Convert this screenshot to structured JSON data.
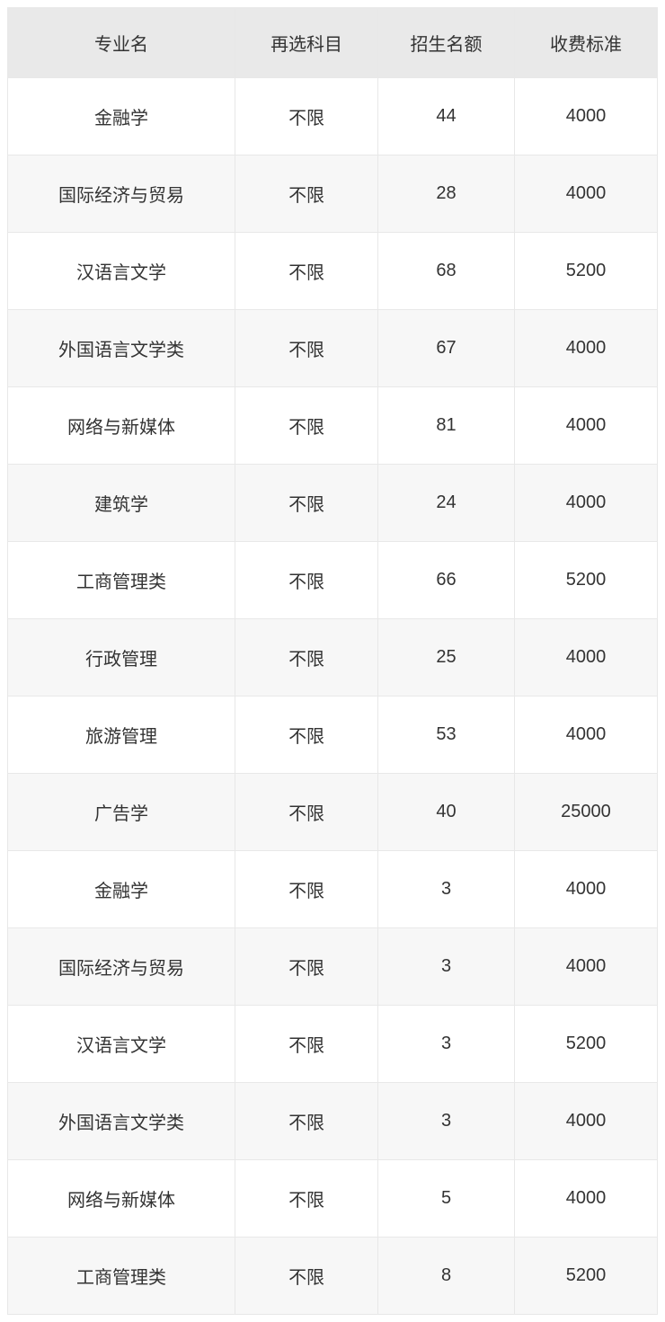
{
  "table": {
    "columns": [
      {
        "label": "专业名",
        "class": "col-major"
      },
      {
        "label": "再选科目",
        "class": "col-subject"
      },
      {
        "label": "招生名额",
        "class": "col-quota"
      },
      {
        "label": "收费标准",
        "class": "col-fee"
      }
    ],
    "rows": [
      {
        "major": "金融学",
        "subject": "不限",
        "quota": "44",
        "fee": "4000"
      },
      {
        "major": "国际经济与贸易",
        "subject": "不限",
        "quota": "28",
        "fee": "4000"
      },
      {
        "major": "汉语言文学",
        "subject": "不限",
        "quota": "68",
        "fee": "5200"
      },
      {
        "major": "外国语言文学类",
        "subject": "不限",
        "quota": "67",
        "fee": "4000"
      },
      {
        "major": "网络与新媒体",
        "subject": "不限",
        "quota": "81",
        "fee": "4000"
      },
      {
        "major": "建筑学",
        "subject": "不限",
        "quota": "24",
        "fee": "4000"
      },
      {
        "major": "工商管理类",
        "subject": "不限",
        "quota": "66",
        "fee": "5200"
      },
      {
        "major": "行政管理",
        "subject": "不限",
        "quota": "25",
        "fee": "4000"
      },
      {
        "major": "旅游管理",
        "subject": "不限",
        "quota": "53",
        "fee": "4000"
      },
      {
        "major": "广告学",
        "subject": "不限",
        "quota": "40",
        "fee": "25000"
      },
      {
        "major": "金融学",
        "subject": "不限",
        "quota": "3",
        "fee": "4000"
      },
      {
        "major": "国际经济与贸易",
        "subject": "不限",
        "quota": "3",
        "fee": "4000"
      },
      {
        "major": "汉语言文学",
        "subject": "不限",
        "quota": "3",
        "fee": "5200"
      },
      {
        "major": "外国语言文学类",
        "subject": "不限",
        "quota": "3",
        "fee": "4000"
      },
      {
        "major": "网络与新媒体",
        "subject": "不限",
        "quota": "5",
        "fee": "4000"
      },
      {
        "major": "工商管理类",
        "subject": "不限",
        "quota": "8",
        "fee": "5200"
      }
    ],
    "styling": {
      "header_bg": "#e9e9e9",
      "row_odd_bg": "#ffffff",
      "row_even_bg": "#f7f7f7",
      "border_color": "#e8e8e8",
      "text_color": "#333333",
      "font_size": 20
    }
  }
}
